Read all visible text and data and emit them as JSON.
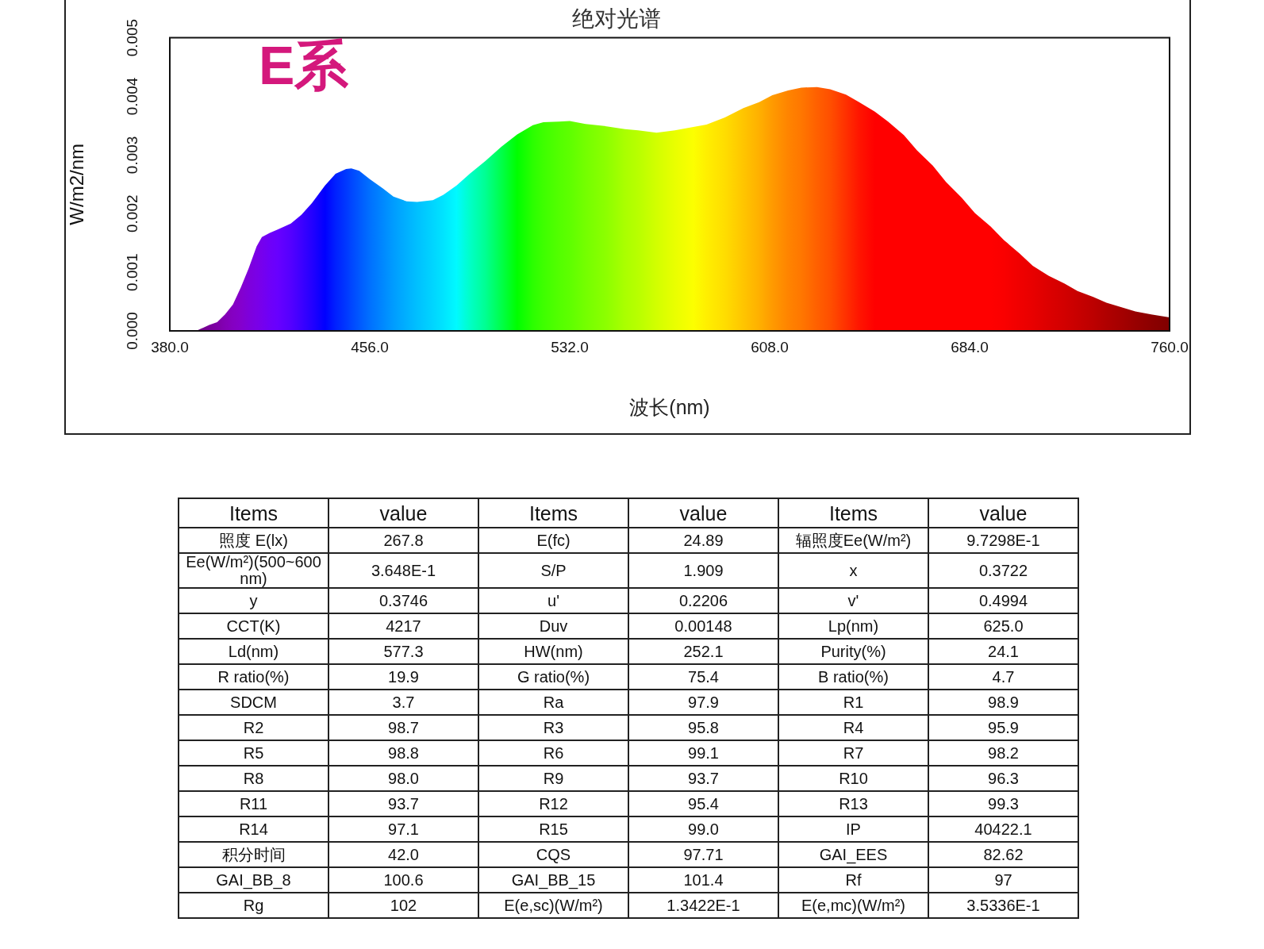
{
  "chart_data": [
    {
      "type": "area",
      "title": "绝对光谱",
      "xlabel": "波长(nm)",
      "ylabel": "W/m2/nm",
      "annotations": [
        "E系"
      ],
      "x": [
        380,
        390,
        395,
        398,
        401,
        404,
        407,
        410,
        413,
        415,
        418,
        421,
        426,
        430,
        434,
        439,
        443,
        447,
        449,
        452,
        456,
        461,
        465,
        470,
        474,
        480,
        484,
        489,
        494,
        500,
        506,
        512,
        518,
        522,
        528,
        532,
        538,
        546,
        553,
        558,
        565,
        572,
        579,
        584,
        591,
        598,
        604,
        609,
        615,
        620,
        626,
        631,
        637,
        642,
        648,
        653,
        659,
        664,
        670,
        675,
        681,
        686,
        692,
        697,
        703,
        708,
        714,
        720,
        725,
        731,
        736,
        742,
        747,
        753,
        760
      ],
      "values": [
        0,
        0,
        0.0001,
        0.00015,
        0.00028,
        0.00045,
        0.00074,
        0.00107,
        0.00144,
        0.0016,
        0.00167,
        0.00173,
        0.00183,
        0.00198,
        0.00218,
        0.00248,
        0.00268,
        0.00276,
        0.00277,
        0.00273,
        0.00259,
        0.00243,
        0.00229,
        0.00221,
        0.0022,
        0.00223,
        0.00232,
        0.00248,
        0.00268,
        0.0029,
        0.00314,
        0.00335,
        0.00351,
        0.00356,
        0.00357,
        0.00358,
        0.00353,
        0.00349,
        0.00344,
        0.00342,
        0.00338,
        0.00342,
        0.00348,
        0.00352,
        0.00364,
        0.0038,
        0.0039,
        0.00402,
        0.0041,
        0.00415,
        0.00416,
        0.00412,
        0.00403,
        0.0039,
        0.00374,
        0.00357,
        0.00334,
        0.00308,
        0.00282,
        0.00254,
        0.00227,
        0.00201,
        0.00178,
        0.00155,
        0.00132,
        0.00111,
        0.00094,
        0.00081,
        0.00068,
        0.00058,
        0.00048,
        0.0004,
        0.00033,
        0.00028,
        0.00023
      ],
      "colors": [
        "#610061",
        "#6f0083",
        "#79009a",
        "#7e00a6",
        "#8300b5",
        "#8500c2",
        "#8400cd",
        "#7e00db",
        "#7a00e6",
        "#7600ed",
        "#6e00f8",
        "#6800ff",
        "#5400ff",
        "#3d00ff",
        "#2400ff",
        "#0000ff",
        "#0020ff",
        "#0038ff",
        "#0046ff",
        "#0058ff",
        "#0070ff",
        "#0088ff",
        "#009cff",
        "#00b0ff",
        "#00c0ff",
        "#00d5ff",
        "#00e4ff",
        "#00faff",
        "#00ffc8",
        "#00ff92",
        "#00ff4a",
        "#00ff00",
        "#2bff00",
        "#3eff00",
        "#53ff00",
        "#5eff00",
        "#74ff00",
        "#8dff00",
        "#aaff00",
        "#b8ff00",
        "#d2ff00",
        "#e9ff00",
        "#fcff00",
        "#ffef00",
        "#ffdd00",
        "#ffc500",
        "#ffb000",
        "#ff9a00",
        "#ff8400",
        "#ff7700",
        "#ff6000",
        "#ff4f00",
        "#ff3000",
        "#ff1500",
        "#ff0000",
        "#ff0000",
        "#ff0000",
        "#ff0000",
        "#ff0000",
        "#ff0000",
        "#ff0000",
        "#ff0000",
        "#ff0000",
        "#fa0000",
        "#f00000",
        "#e80000",
        "#dc0000",
        "#d20000",
        "#c80000",
        "#bc0000",
        "#b00000",
        "#a40000",
        "#980000",
        "#8c0000",
        "#800000"
      ],
      "xlim": [
        380,
        760
      ],
      "xticks": [
        {
          "value": 380,
          "label": "380.0"
        },
        {
          "value": 456,
          "label": "456.0"
        },
        {
          "value": 532,
          "label": "532.0"
        },
        {
          "value": 608,
          "label": "608.0"
        },
        {
          "value": 684,
          "label": "684.0"
        },
        {
          "value": 760,
          "label": "760.0"
        }
      ],
      "ylim": [
        0,
        0.005
      ],
      "yticks": [
        {
          "value": 0,
          "label": "0.000"
        },
        0.001,
        0.002,
        0.003,
        0.004,
        0.005
      ]
    },
    {
      "type": "other",
      "categories": [
        "Items",
        "value",
        "Items",
        "value",
        "Items",
        "value"
      ],
      "annotations": [
        "照度 E(lx)",
        "267.8",
        "E(fc)",
        "24.89",
        "辐照度Ee(W/m²)",
        "9.7298E-1",
        "Ee(W/m²)(500~600nm)",
        "3.648E-1",
        "S/P",
        "1.909",
        "x",
        "0.3722",
        "y",
        "0.3746",
        "u'",
        "0.2206",
        "v'",
        "0.4994",
        "CCT(K)",
        "4217",
        "Duv",
        "0.00148",
        "Lp(nm)",
        "625.0",
        "Ld(nm)",
        "577.3",
        "HW(nm)",
        "252.1",
        "Purity(%)",
        "24.1",
        "R ratio(%)",
        "19.9",
        "G ratio(%)",
        "75.4",
        "B ratio(%)",
        "4.7",
        "SDCM",
        "3.7",
        "Ra",
        "97.9",
        "R1",
        "98.9",
        "R2",
        "98.7",
        "R3",
        "95.8",
        "R4",
        "95.9",
        "R5",
        "98.8",
        "R6",
        "99.1",
        "R7",
        "98.2",
        "R8",
        "98.0",
        "R9",
        "93.7",
        "R10",
        "96.3",
        "R11",
        "93.7",
        "R12",
        "95.4",
        "R13",
        "99.3",
        "R14",
        "97.1",
        "R15",
        "99.0",
        "IP",
        "40422.1",
        "积分时间",
        "42.0",
        "CQS",
        "97.71",
        "GAI_EES",
        "82.62",
        "GAI_BB_8",
        "100.6",
        "GAI_BB_15",
        "101.4",
        "Rf",
        "97",
        "Rg",
        "102",
        "E(e,sc)(W/m²)",
        "1.3422E-1",
        "E(e,mc)(W/m²)",
        "3.5336E-1"
      ]
    }
  ]
}
